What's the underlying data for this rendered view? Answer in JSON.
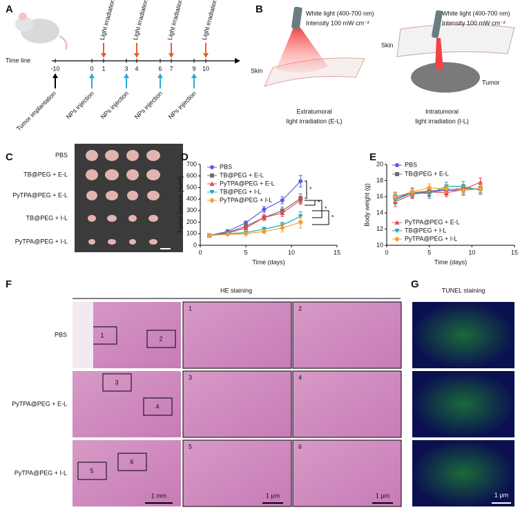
{
  "panel_labels": [
    "A",
    "B",
    "C",
    "D",
    "E",
    "F",
    "G"
  ],
  "timeline": {
    "label": "Time line",
    "days": [
      -10,
      0,
      1,
      3,
      4,
      6,
      7,
      9,
      10
    ],
    "light": [
      "Light irradiation",
      "Light irradiation",
      "Light irradiation",
      "Light irradiation"
    ],
    "injection": [
      "NPs injection",
      "NPs injection",
      "NPs injection",
      "NPs injection"
    ],
    "implantation": "Tumor implantation"
  },
  "setup": {
    "extratumoral": {
      "light": "White light (400-700 nm)",
      "intensity": "Intensity 100 mW cm⁻²",
      "skin": "Skin",
      "caption": [
        "Extratumoral",
        "light irradiation (E-L)"
      ]
    },
    "intratumoral": {
      "light": "White light (400-700 nm)",
      "intensity": "Intensity 100 mW cm⁻²",
      "skin": "Skin",
      "tumor": "Tumor",
      "caption": [
        "Intratumoral",
        "light irradiation (I-L)"
      ]
    }
  },
  "photo": {
    "rows": [
      "PBS",
      "TB@PEG + E-L",
      "PyTPA@PEG + E-L",
      "TB@PEG + I-L",
      "PyTPA@PEG + I-L"
    ]
  },
  "histology": {
    "title": "HE staining",
    "rows": [
      "PBS",
      "PyTPA@PEG + E-L",
      "PyTPA@PEG + I-L"
    ],
    "regions": [
      "1",
      "2",
      "3",
      "4",
      "5",
      "6"
    ],
    "scale_bars": [
      "1 mm",
      "1 μm",
      "1 μm"
    ]
  },
  "tunel": {
    "title": "TUNEL staining",
    "scale_bar": "1 μm"
  },
  "chart_data": [
    {
      "type": "line",
      "ylabel": "Tumor volume (mm³)",
      "xlabel": "Time (days)",
      "x": [
        1,
        3,
        5,
        7,
        9,
        11
      ],
      "xlim": [
        0,
        15
      ],
      "xticks": [
        0,
        5,
        10,
        15
      ],
      "ylim": [
        0,
        700
      ],
      "yticks": [
        0,
        100,
        200,
        300,
        400,
        500,
        600,
        700
      ],
      "annotations": [
        "*",
        "*",
        "*",
        "*"
      ],
      "series": [
        {
          "name": "PBS",
          "color": "#5b5be8",
          "marker": "circle",
          "values": [
            85,
            120,
            195,
            310,
            390,
            555
          ],
          "errors": [
            8,
            15,
            15,
            25,
            30,
            50
          ]
        },
        {
          "name": "TB@PEG + E-L",
          "color": "#6e6e6e",
          "marker": "square",
          "values": [
            85,
            110,
            165,
            240,
            300,
            405
          ],
          "errors": [
            8,
            12,
            15,
            25,
            30,
            40
          ]
        },
        {
          "name": "PyTPA@PEG + E-L",
          "color": "#e84850",
          "marker": "triangle-up",
          "values": [
            85,
            105,
            150,
            240,
            280,
            390
          ],
          "errors": [
            8,
            12,
            15,
            25,
            30,
            35
          ]
        },
        {
          "name": "TB@PEG + I-L",
          "color": "#1ea6b8",
          "marker": "triangle-down",
          "values": [
            85,
            100,
            110,
            140,
            175,
            250
          ],
          "errors": [
            8,
            10,
            12,
            15,
            25,
            40
          ]
        },
        {
          "name": "PyTPA@PEG + I-L",
          "color": "#f5a030",
          "marker": "diamond",
          "values": [
            85,
            95,
            100,
            120,
            150,
            200
          ],
          "errors": [
            8,
            10,
            12,
            15,
            35,
            50
          ]
        }
      ]
    },
    {
      "type": "line",
      "ylabel": "Body weight (g)",
      "xlabel": "Time (days)",
      "x": [
        1,
        3,
        5,
        7,
        9,
        11
      ],
      "xlim": [
        0,
        15
      ],
      "xticks": [
        0,
        5,
        10,
        15
      ],
      "ylim": [
        10,
        20
      ],
      "yticks": [
        10,
        12,
        14,
        16,
        18,
        20
      ],
      "series": [
        {
          "name": "PBS",
          "color": "#5b5be8",
          "marker": "circle",
          "values": [
            15.8,
            16.5,
            16.6,
            16.8,
            16.8,
            17.0
          ],
          "errors": [
            0.5,
            0.5,
            0.5,
            0.6,
            0.6,
            0.5
          ]
        },
        {
          "name": "TB@PEG + E-L",
          "color": "#6e6e6e",
          "marker": "square",
          "values": [
            16.0,
            16.5,
            16.7,
            16.9,
            17.0,
            17.0
          ],
          "errors": [
            0.5,
            0.6,
            0.5,
            0.5,
            0.5,
            0.5
          ]
        },
        {
          "name": "PyTPA@PEG + E-L",
          "color": "#e84850",
          "marker": "triangle-up",
          "values": [
            15.4,
            16.3,
            16.6,
            16.5,
            16.9,
            17.8
          ],
          "errors": [
            0.6,
            0.5,
            0.6,
            0.5,
            0.6,
            0.5
          ]
        },
        {
          "name": "TB@PEG + I-L",
          "color": "#1ea6b8",
          "marker": "triangle-down",
          "values": [
            15.6,
            16.5,
            16.4,
            17.3,
            17.3,
            16.8
          ],
          "errors": [
            0.5,
            0.5,
            0.6,
            0.5,
            0.6,
            0.5
          ]
        },
        {
          "name": "PyTPA@PEG + I-L",
          "color": "#f5a030",
          "marker": "diamond",
          "values": [
            16.0,
            16.6,
            17.1,
            17.0,
            16.8,
            17.0
          ],
          "errors": [
            0.6,
            0.5,
            0.5,
            0.5,
            0.5,
            0.6
          ]
        }
      ]
    }
  ]
}
